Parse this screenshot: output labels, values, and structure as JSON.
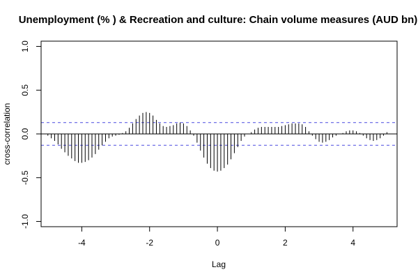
{
  "chart_data": {
    "type": "bar",
    "title": "Unemployment (% ) & Recreation and culture: Chain volume measures (AUD bn)",
    "xlabel": "Lag",
    "ylabel": "cross-correlation",
    "xlim": [
      -5.2,
      5.3
    ],
    "ylim": [
      -1.06,
      1.06
    ],
    "x_ticks": [
      -4,
      -2,
      0,
      2,
      4
    ],
    "x_tick_labels": [
      "-4",
      "-2",
      "0",
      "2",
      "4"
    ],
    "y_ticks": [
      -1.0,
      -0.5,
      0.0,
      0.5,
      1.0
    ],
    "y_tick_labels": [
      "-1.0",
      "-0.5",
      "0.0",
      "0.5",
      "1.0"
    ],
    "confidence_bound": 0.13,
    "colors": {
      "bars": "#000000",
      "confidence": "#4a4ae0",
      "zero_line": "#000000"
    },
    "grid": false,
    "x": [
      -5.0,
      -4.9,
      -4.8,
      -4.7,
      -4.6,
      -4.5,
      -4.4,
      -4.3,
      -4.2,
      -4.1,
      -4.0,
      -3.9,
      -3.8,
      -3.7,
      -3.6,
      -3.5,
      -3.4,
      -3.3,
      -3.2,
      -3.1,
      -3.0,
      -2.9,
      -2.8,
      -2.7,
      -2.6,
      -2.5,
      -2.4,
      -2.3,
      -2.2,
      -2.1,
      -2.0,
      -1.9,
      -1.8,
      -1.7,
      -1.6,
      -1.5,
      -1.4,
      -1.3,
      -1.2,
      -1.1,
      -1.0,
      -0.9,
      -0.8,
      -0.7,
      -0.6,
      -0.5,
      -0.4,
      -0.3,
      -0.2,
      -0.1,
      0.0,
      0.1,
      0.2,
      0.3,
      0.4,
      0.5,
      0.6,
      0.7,
      0.8,
      0.9,
      1.0,
      1.1,
      1.2,
      1.3,
      1.4,
      1.5,
      1.6,
      1.7,
      1.8,
      1.9,
      2.0,
      2.1,
      2.2,
      2.3,
      2.4,
      2.5,
      2.6,
      2.7,
      2.8,
      2.9,
      3.0,
      3.1,
      3.2,
      3.3,
      3.4,
      3.5,
      3.6,
      3.7,
      3.8,
      3.9,
      4.0,
      4.1,
      4.2,
      4.3,
      4.4,
      4.5,
      4.6,
      4.7,
      4.8,
      4.9,
      5.0
    ],
    "values": [
      -0.02,
      -0.05,
      -0.08,
      -0.12,
      -0.17,
      -0.21,
      -0.25,
      -0.28,
      -0.31,
      -0.33,
      -0.33,
      -0.32,
      -0.3,
      -0.27,
      -0.23,
      -0.18,
      -0.13,
      -0.09,
      -0.05,
      -0.03,
      -0.02,
      -0.01,
      0.01,
      0.03,
      0.07,
      0.12,
      0.17,
      0.21,
      0.24,
      0.25,
      0.24,
      0.21,
      0.16,
      0.12,
      0.09,
      0.08,
      0.09,
      0.1,
      0.12,
      0.13,
      0.12,
      0.09,
      0.04,
      -0.02,
      -0.1,
      -0.19,
      -0.27,
      -0.34,
      -0.39,
      -0.42,
      -0.43,
      -0.42,
      -0.39,
      -0.35,
      -0.29,
      -0.22,
      -0.15,
      -0.08,
      -0.03,
      0.0,
      0.02,
      0.05,
      0.07,
      0.08,
      0.08,
      0.08,
      0.08,
      0.08,
      0.08,
      0.09,
      0.1,
      0.11,
      0.12,
      0.12,
      0.12,
      0.11,
      0.08,
      0.03,
      -0.02,
      -0.06,
      -0.09,
      -0.1,
      -0.09,
      -0.07,
      -0.04,
      -0.02,
      0.0,
      0.01,
      0.03,
      0.04,
      0.04,
      0.03,
      0.01,
      -0.02,
      -0.05,
      -0.07,
      -0.08,
      -0.07,
      -0.05,
      -0.02,
      0.02
    ]
  }
}
